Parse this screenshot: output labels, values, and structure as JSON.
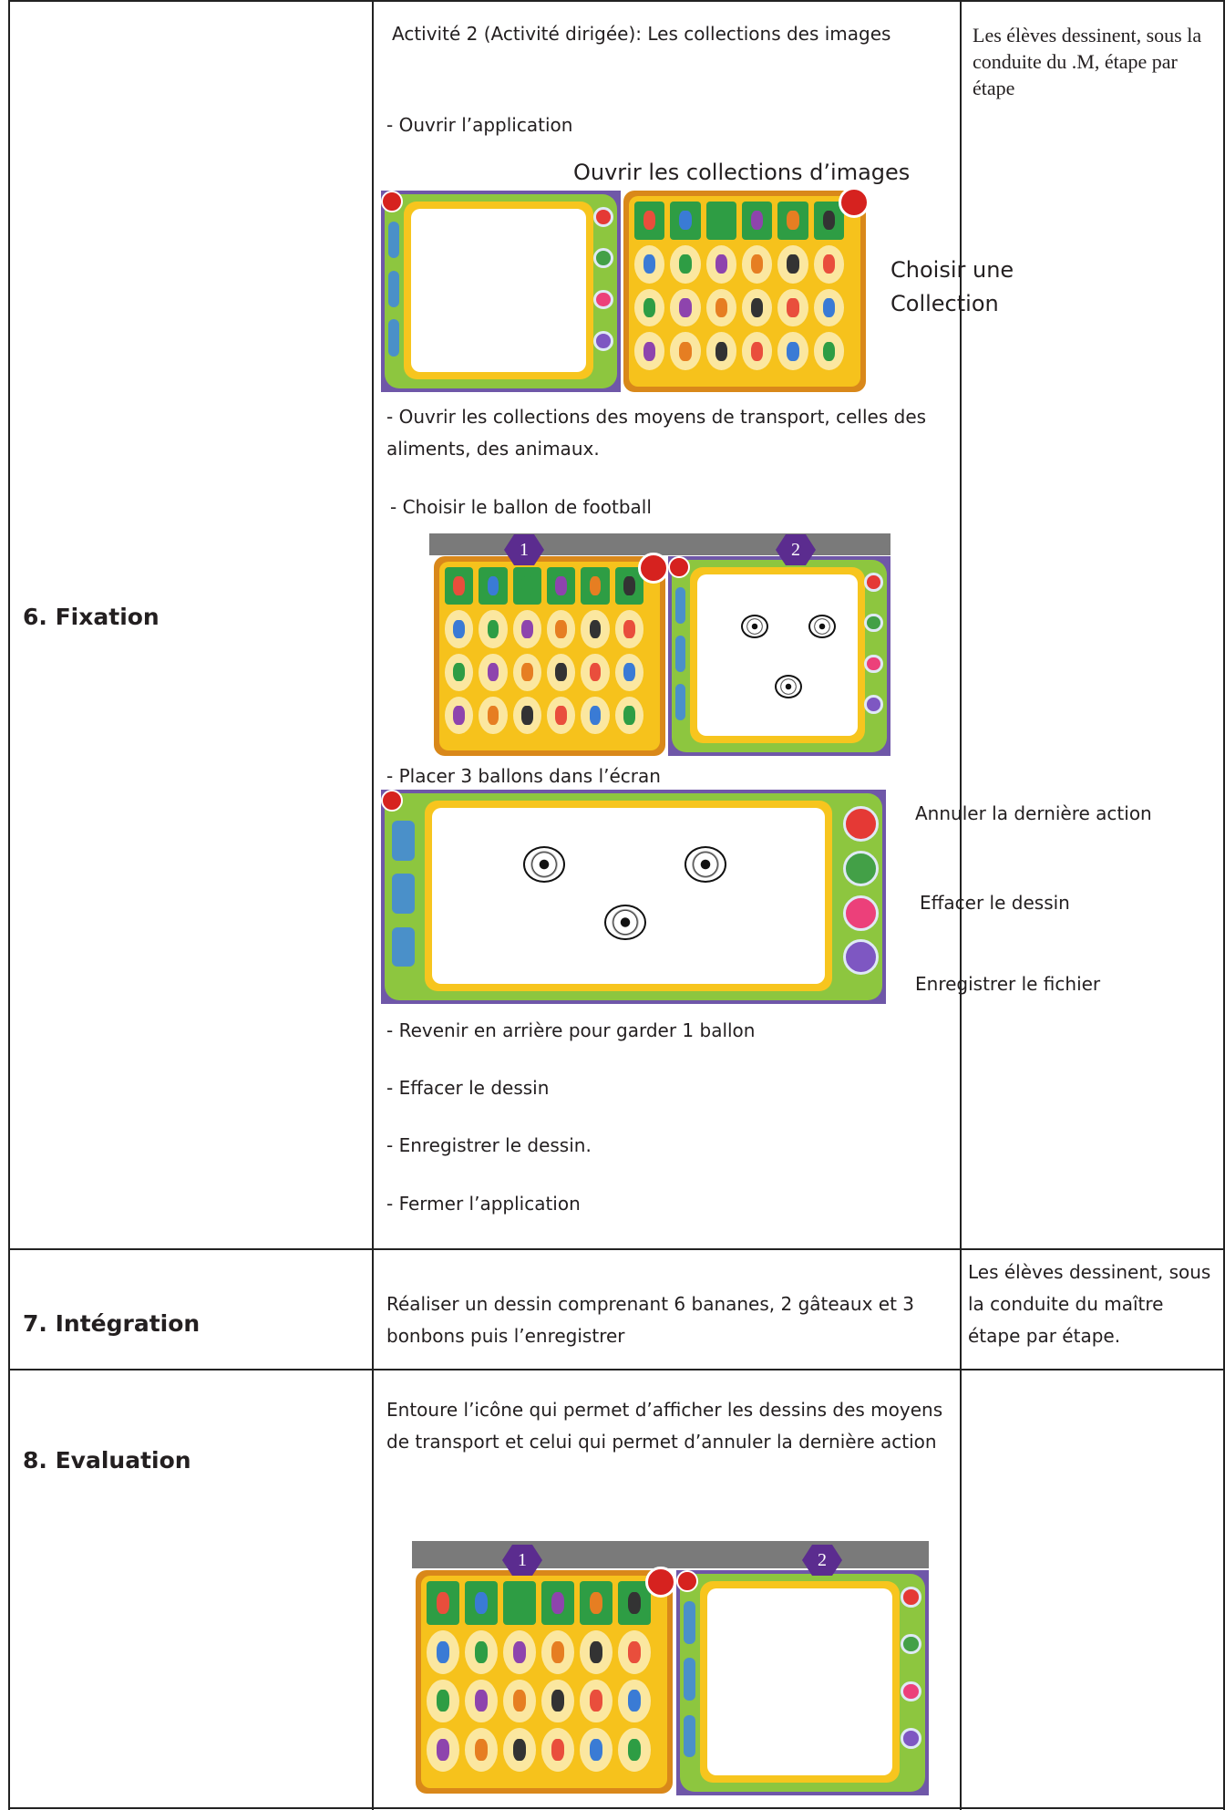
{
  "table": {
    "rows": [
      {
        "stage": "6. Fixation",
        "activity": {
          "title": "Activité 2 (Activité dirigée):  Les collections des images",
          "step1": "- Ouvrir l’application",
          "caption1": "Ouvrir les collections d’images",
          "caption2": "Choisir une Collection",
          "step2": "- Ouvrir les collections des moyens de transport, celles des aliments, des animaux.",
          "step3": "- Choisir le ballon de football",
          "panel1": "1",
          "panel2": "2",
          "step4": "- Placer 3 ballons dans l’écran",
          "button1": "Annuler la dernière action",
          "button2": "Effacer le dessin",
          "button3": "Enregistrer le fichier",
          "step5": "- Revenir en arrière pour garder 1 ballon",
          "step6": "- Effacer le dessin",
          "step7": "- Enregistrer le dessin.",
          "step8": "- Fermer l’application"
        },
        "observation": "Les élèves dessinent, sous la conduite du .M, étape par étape"
      },
      {
        "stage": "7. Intégration",
        "activity": "Réaliser un dessin comprenant 6 bananes, 2 gâteaux et 3 bonbons puis l’enregistrer",
        "observation": "Les élèves dessinent, sous la conduite du maître étape par étape."
      },
      {
        "stage": "8. Evaluation",
        "activity": {
          "text": "Entoure l’icône qui permet d’afficher les dessins des moyens de transport et celui qui permet d’annuler la dernière action",
          "panel1": "1",
          "panel2": "2"
        }
      }
    ]
  }
}
